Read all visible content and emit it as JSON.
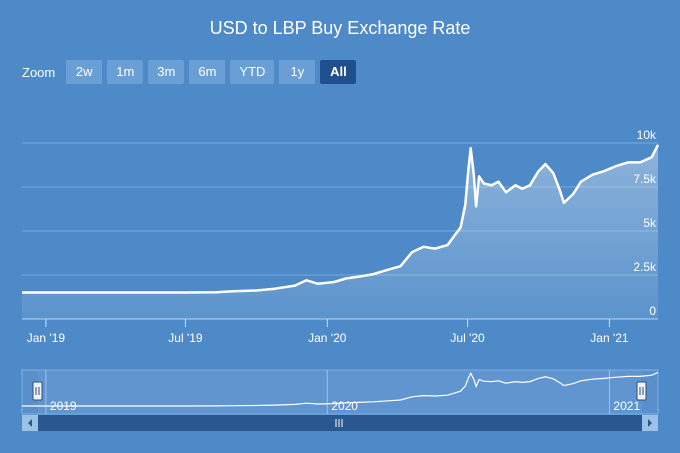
{
  "title": "USD to LBP Buy Exchange Rate",
  "zoom": {
    "label": "Zoom",
    "buttons": [
      "2w",
      "1m",
      "3m",
      "6m",
      "YTD",
      "1y",
      "All"
    ],
    "active": "All"
  },
  "colors": {
    "background": "#4e8ac8",
    "line": "#ffffff",
    "active_button": "#1f4f8c",
    "button": "#6a9fd6",
    "scrollbar": "#2a578f"
  },
  "chart_data": {
    "type": "area",
    "title": "USD to LBP Buy Exchange Rate",
    "x_axis": {
      "type": "date",
      "range": [
        "2018-12-01",
        "2021-03-05"
      ],
      "tick_labels": [
        {
          "date": "2019-01-01",
          "label": "Jan '19"
        },
        {
          "date": "2019-07-01",
          "label": "Jul '19"
        },
        {
          "date": "2020-01-01",
          "label": "Jan '20"
        },
        {
          "date": "2020-07-01",
          "label": "Jul '20"
        },
        {
          "date": "2021-01-01",
          "label": "Jan '21"
        }
      ]
    },
    "y_axis": {
      "range": [
        0,
        10000
      ],
      "ticks": [
        0,
        2500,
        5000,
        7500,
        10000
      ],
      "tick_labels": [
        "0",
        "2.5k",
        "5k",
        "7.5k",
        "10k"
      ],
      "grid": true
    },
    "series": [
      {
        "points": [
          [
            "2018-12-01",
            1507
          ],
          [
            "2019-01-15",
            1507
          ],
          [
            "2019-03-01",
            1507
          ],
          [
            "2019-05-01",
            1507
          ],
          [
            "2019-07-01",
            1507
          ],
          [
            "2019-08-10",
            1520
          ],
          [
            "2019-09-01",
            1580
          ],
          [
            "2019-10-01",
            1620
          ],
          [
            "2019-10-25",
            1720
          ],
          [
            "2019-11-20",
            1900
          ],
          [
            "2019-12-05",
            2200
          ],
          [
            "2019-12-20",
            2000
          ],
          [
            "2020-01-10",
            2100
          ],
          [
            "2020-01-25",
            2300
          ],
          [
            "2020-02-10",
            2400
          ],
          [
            "2020-03-01",
            2550
          ],
          [
            "2020-03-20",
            2800
          ],
          [
            "2020-04-05",
            3000
          ],
          [
            "2020-04-20",
            3800
          ],
          [
            "2020-05-05",
            4100
          ],
          [
            "2020-05-20",
            4000
          ],
          [
            "2020-06-05",
            4200
          ],
          [
            "2020-06-15",
            4800
          ],
          [
            "2020-06-22",
            5200
          ],
          [
            "2020-06-28",
            6500
          ],
          [
            "2020-07-02",
            8500
          ],
          [
            "2020-07-05",
            9700
          ],
          [
            "2020-07-09",
            8200
          ],
          [
            "2020-07-12",
            6400
          ],
          [
            "2020-07-16",
            8100
          ],
          [
            "2020-07-22",
            7700
          ],
          [
            "2020-08-01",
            7600
          ],
          [
            "2020-08-10",
            7800
          ],
          [
            "2020-08-20",
            7200
          ],
          [
            "2020-09-01",
            7600
          ],
          [
            "2020-09-10",
            7400
          ],
          [
            "2020-09-20",
            7600
          ],
          [
            "2020-10-01",
            8400
          ],
          [
            "2020-10-10",
            8800
          ],
          [
            "2020-10-20",
            8300
          ],
          [
            "2020-10-28",
            7400
          ],
          [
            "2020-11-03",
            6600
          ],
          [
            "2020-11-15",
            7100
          ],
          [
            "2020-11-25",
            7800
          ],
          [
            "2020-12-10",
            8200
          ],
          [
            "2020-12-25",
            8400
          ],
          [
            "2021-01-10",
            8700
          ],
          [
            "2021-01-25",
            8900
          ],
          [
            "2021-02-10",
            8900
          ],
          [
            "2021-02-25",
            9200
          ],
          [
            "2021-03-05",
            9900
          ]
        ]
      }
    ],
    "navigator": {
      "labels": [
        {
          "date": "2019-01-01",
          "label": "2019"
        },
        {
          "date": "2020-01-01",
          "label": "2020"
        },
        {
          "date": "2021-01-01",
          "label": "2021"
        }
      ]
    }
  }
}
